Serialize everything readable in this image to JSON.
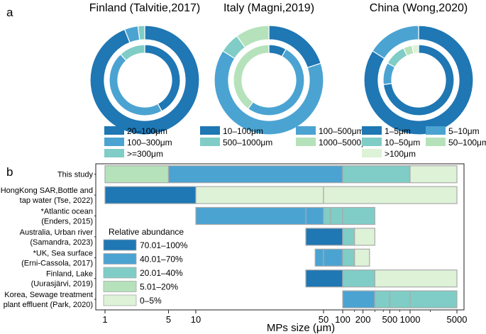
{
  "panel_labels": {
    "a": "a",
    "b": "b"
  },
  "colors": {
    "c1": "#1F77B4",
    "c2": "#4BA3D2",
    "c3": "#7FCDC6",
    "c4": "#B5E2BB",
    "c5": "#DDF2D6",
    "ring_gap": "#ffffff",
    "bar_border": "#aaaaaa"
  },
  "chart_data": [
    {
      "type": "pie",
      "subtype": "nested-donut",
      "panel": "a",
      "charts": [
        {
          "title": "Finland (Talvitie,2017)",
          "legend": [
            {
              "label": "20–100μm",
              "color": "c1"
            },
            {
              "label": "100–300μm",
              "color": "c2"
            },
            {
              "label": ">=300μm",
              "color": "c3"
            }
          ],
          "outer": [
            {
              "label": "20–100μm",
              "value": 0.94,
              "color": "c1"
            },
            {
              "label": "100–300μm",
              "value": 0.04,
              "color": "c2"
            },
            {
              "label": ">=300μm",
              "value": 0.02,
              "color": "c3"
            }
          ],
          "inner": [
            {
              "label": "20–100μm",
              "value": 0.42,
              "color": "c1"
            },
            {
              "label": "100–300μm",
              "value": 0.46,
              "color": "c2"
            },
            {
              "label": ">=300μm",
              "value": 0.12,
              "color": "c3"
            }
          ]
        },
        {
          "title": "Italy (Magni,2019)",
          "legend": [
            {
              "label": "10–100μm",
              "color": "c1"
            },
            {
              "label": "100–500μm",
              "color": "c2"
            },
            {
              "label": "500–1000μm",
              "color": "c3"
            },
            {
              "label": "1000–5000μm",
              "color": "c4"
            }
          ],
          "outer": [
            {
              "label": "10–100μm",
              "value": 0.2,
              "color": "c1"
            },
            {
              "label": "100–500μm",
              "value": 0.64,
              "color": "c2"
            },
            {
              "label": "500–1000μm",
              "value": 0.06,
              "color": "c3"
            },
            {
              "label": "1000–5000μm",
              "value": 0.1,
              "color": "c4"
            }
          ],
          "inner": [
            {
              "label": "10–100μm",
              "value": 0.08,
              "color": "c1"
            },
            {
              "label": "100–500μm",
              "value": 0.52,
              "color": "c2"
            },
            {
              "label": "1000–5000μm",
              "value": 0.4,
              "color": "c4"
            }
          ]
        },
        {
          "title": "China (Wong,2020)",
          "legend": [
            {
              "label": "1–5μm",
              "color": "c1"
            },
            {
              "label": "5–10μm",
              "color": "c2"
            },
            {
              "label": "10–50μm",
              "color": "c3"
            },
            {
              "label": "50–100μm",
              "color": "c4"
            },
            {
              "label": ">100μm",
              "color": "c5"
            }
          ],
          "outer": [
            {
              "label": "1–5μm",
              "value": 0.84,
              "color": "c1"
            },
            {
              "label": "5–10μm",
              "value": 0.16,
              "color": "c2"
            }
          ],
          "inner": [
            {
              "label": "1–5μm",
              "value": 0.73,
              "color": "c1"
            },
            {
              "label": "5–10μm",
              "value": 0.1,
              "color": "c2"
            },
            {
              "label": "10–50μm",
              "value": 0.1,
              "color": "c3"
            },
            {
              "label": "50–100μm",
              "value": 0.04,
              "color": "c4"
            },
            {
              "label": ">100μm",
              "value": 0.03,
              "color": "c5"
            }
          ]
        }
      ]
    },
    {
      "type": "bar",
      "subtype": "horizontal-floating-segments",
      "panel": "b",
      "xlabel": "MPs size (μm)",
      "x_scale": "custom-piecewise-log",
      "xlim": [
        1,
        5000
      ],
      "xticks": [
        1,
        5,
        10,
        50,
        100,
        200,
        500,
        1000,
        5000
      ],
      "xtick_labels": [
        "1",
        "5",
        "10",
        "50",
        "100",
        "200",
        "500",
        "1000",
        "5000"
      ],
      "x_minor_ticks": [
        50,
        150,
        300,
        400,
        700,
        2000
      ],
      "categories": [
        "This study",
        "HongKong SAR,Bottle and tap water (Tse, 2022)",
        "*Atlantic ocean (Enders, 2015)",
        "Australia, Urban river (Samandra, 2023)",
        "*UK, Sea surface (Erni-Cassola, 2017)",
        "Finland, Lake (Uurasjärvi, 2019)",
        "Korea, Sewage treatment plant effluent (Park, 2020)"
      ],
      "category_labels": [
        [
          "This study"
        ],
        [
          "HongKong SAR,Bottle and",
          "tap water (Tse, 2022)"
        ],
        [
          "*Atlantic ocean",
          "(Enders, 2015)"
        ],
        [
          "Australia, Urban river",
          "(Samandra, 2023)"
        ],
        [
          "*UK, Sea surface",
          "(Erni-Cassola, 2017)"
        ],
        [
          "Finland, Lake",
          "(Uurasjärvi, 2019)"
        ],
        [
          "Korea, Sewage treatment",
          "plant effluent (Park, 2020)"
        ]
      ],
      "segments": [
        [
          {
            "start": 1,
            "end": 5,
            "abundance": "5.01–20%"
          },
          {
            "start": 5,
            "end": 100,
            "abundance": "40.01–70%"
          },
          {
            "start": 100,
            "end": 1000,
            "abundance": "20.01–40%"
          },
          {
            "start": 1000,
            "end": 5000,
            "abundance": "0–5%"
          }
        ],
        [
          {
            "start": 1,
            "end": 10,
            "abundance": "70.01–100%"
          },
          {
            "start": 10,
            "end": 50,
            "abundance": "0–5%"
          },
          {
            "start": 50,
            "end": 5000,
            "abundance": "0–5%"
          }
        ],
        [
          {
            "start": 10,
            "end": 40,
            "abundance": "40.01–70%"
          },
          {
            "start": 40,
            "end": 50,
            "abundance": "40.01–70%"
          },
          {
            "start": 50,
            "end": 65,
            "abundance": "20.01–40%"
          },
          {
            "start": 65,
            "end": 100,
            "abundance": "20.01–40%"
          },
          {
            "start": 100,
            "end": 300,
            "abundance": "20.01–40%"
          }
        ],
        [
          {
            "start": 40,
            "end": 100,
            "abundance": "70.01–100%"
          },
          {
            "start": 100,
            "end": 150,
            "abundance": "20.01–40%"
          },
          {
            "start": 150,
            "end": 300,
            "abundance": "0–5%"
          }
        ],
        [
          {
            "start": 45,
            "end": 50,
            "abundance": "40.01–70%"
          },
          {
            "start": 50,
            "end": 100,
            "abundance": "40.01–70%"
          },
          {
            "start": 100,
            "end": 150,
            "abundance": "20.01–40%"
          },
          {
            "start": 150,
            "end": 250,
            "abundance": "0–5%"
          }
        ],
        [
          {
            "start": 40,
            "end": 100,
            "abundance": "70.01–100%"
          },
          {
            "start": 100,
            "end": 300,
            "abundance": "20.01–40%"
          },
          {
            "start": 300,
            "end": 5000,
            "abundance": "0–5%"
          }
        ],
        [
          {
            "start": 100,
            "end": 300,
            "abundance": "40.01–70%"
          },
          {
            "start": 300,
            "end": 500,
            "abundance": "20.01–40%"
          },
          {
            "start": 500,
            "end": 1000,
            "abundance": "20.01–40%"
          },
          {
            "start": 1000,
            "end": 5000,
            "abundance": "20.01–40%"
          }
        ]
      ],
      "legend_title": "Relative abundance",
      "legend": [
        {
          "label": "70.01–100%",
          "color": "c1"
        },
        {
          "label": "40.01–70%",
          "color": "c2"
        },
        {
          "label": "20.01–40%",
          "color": "c3"
        },
        {
          "label": "5.01–20%",
          "color": "c4"
        },
        {
          "label": "0–5%",
          "color": "c5"
        }
      ]
    }
  ]
}
